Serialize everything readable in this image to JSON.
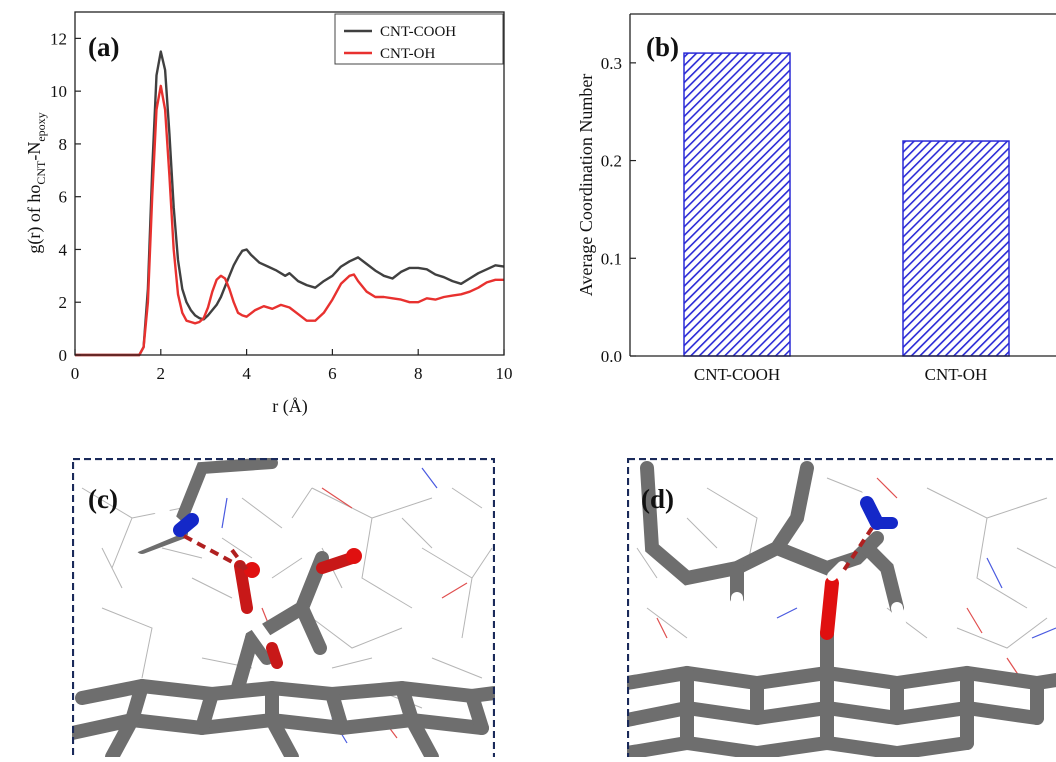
{
  "chart_data": [
    {
      "type": "line",
      "panel_label": "(a)",
      "xlabel": "r (Å)",
      "ylabel": {
        "prefix": "g(r) of ho",
        "sub1": "CNT",
        "mid": "-N",
        "sub2": "epoxy"
      },
      "xlim": [
        0,
        10
      ],
      "ylim": [
        0,
        13
      ],
      "xticks": [
        0,
        2,
        4,
        6,
        8,
        10
      ],
      "yticks": [
        0,
        2,
        4,
        6,
        8,
        10,
        12
      ],
      "legend_position": "top-right",
      "series": [
        {
          "name": "CNT-COOH",
          "color": "#404040",
          "points": [
            [
              0,
              0
            ],
            [
              1.0,
              0
            ],
            [
              1.5,
              0
            ],
            [
              1.6,
              0.3
            ],
            [
              1.7,
              2.5
            ],
            [
              1.8,
              7.0
            ],
            [
              1.9,
              10.6
            ],
            [
              2.0,
              11.5
            ],
            [
              2.1,
              10.8
            ],
            [
              2.2,
              8.4
            ],
            [
              2.3,
              5.6
            ],
            [
              2.4,
              3.6
            ],
            [
              2.5,
              2.5
            ],
            [
              2.6,
              2.0
            ],
            [
              2.7,
              1.7
            ],
            [
              2.8,
              1.5
            ],
            [
              2.9,
              1.4
            ],
            [
              3.0,
              1.35
            ],
            [
              3.1,
              1.5
            ],
            [
              3.2,
              1.7
            ],
            [
              3.3,
              1.9
            ],
            [
              3.4,
              2.2
            ],
            [
              3.5,
              2.6
            ],
            [
              3.6,
              3.0
            ],
            [
              3.7,
              3.4
            ],
            [
              3.8,
              3.7
            ],
            [
              3.9,
              3.95
            ],
            [
              4.0,
              4.0
            ],
            [
              4.1,
              3.8
            ],
            [
              4.3,
              3.5
            ],
            [
              4.5,
              3.35
            ],
            [
              4.7,
              3.2
            ],
            [
              4.9,
              3.0
            ],
            [
              5.0,
              3.1
            ],
            [
              5.2,
              2.8
            ],
            [
              5.4,
              2.65
            ],
            [
              5.6,
              2.55
            ],
            [
              5.8,
              2.8
            ],
            [
              6.0,
              3.0
            ],
            [
              6.2,
              3.35
            ],
            [
              6.4,
              3.55
            ],
            [
              6.6,
              3.7
            ],
            [
              6.8,
              3.45
            ],
            [
              7.0,
              3.2
            ],
            [
              7.2,
              3.0
            ],
            [
              7.4,
              2.9
            ],
            [
              7.6,
              3.15
            ],
            [
              7.8,
              3.3
            ],
            [
              8.0,
              3.3
            ],
            [
              8.2,
              3.25
            ],
            [
              8.4,
              3.05
            ],
            [
              8.6,
              2.95
            ],
            [
              8.8,
              2.8
            ],
            [
              9.0,
              2.7
            ],
            [
              9.2,
              2.9
            ],
            [
              9.4,
              3.1
            ],
            [
              9.6,
              3.25
            ],
            [
              9.8,
              3.4
            ],
            [
              10.0,
              3.35
            ]
          ]
        },
        {
          "name": "CNT-OH",
          "color": "#e8312f",
          "points": [
            [
              0,
              0
            ],
            [
              1.0,
              0
            ],
            [
              1.5,
              0
            ],
            [
              1.6,
              0.3
            ],
            [
              1.7,
              2.0
            ],
            [
              1.8,
              6.0
            ],
            [
              1.9,
              9.3
            ],
            [
              2.0,
              10.2
            ],
            [
              2.1,
              9.3
            ],
            [
              2.2,
              6.8
            ],
            [
              2.3,
              4.0
            ],
            [
              2.4,
              2.3
            ],
            [
              2.5,
              1.6
            ],
            [
              2.6,
              1.3
            ],
            [
              2.7,
              1.25
            ],
            [
              2.8,
              1.2
            ],
            [
              2.9,
              1.25
            ],
            [
              3.0,
              1.4
            ],
            [
              3.1,
              1.8
            ],
            [
              3.2,
              2.4
            ],
            [
              3.3,
              2.85
            ],
            [
              3.4,
              3.0
            ],
            [
              3.5,
              2.9
            ],
            [
              3.6,
              2.5
            ],
            [
              3.7,
              2.0
            ],
            [
              3.8,
              1.6
            ],
            [
              3.9,
              1.5
            ],
            [
              4.0,
              1.45
            ],
            [
              4.2,
              1.7
            ],
            [
              4.4,
              1.85
            ],
            [
              4.6,
              1.75
            ],
            [
              4.8,
              1.9
            ],
            [
              5.0,
              1.8
            ],
            [
              5.2,
              1.55
            ],
            [
              5.4,
              1.3
            ],
            [
              5.6,
              1.3
            ],
            [
              5.8,
              1.6
            ],
            [
              6.0,
              2.1
            ],
            [
              6.2,
              2.7
            ],
            [
              6.4,
              3.0
            ],
            [
              6.5,
              3.05
            ],
            [
              6.6,
              2.8
            ],
            [
              6.8,
              2.4
            ],
            [
              7.0,
              2.2
            ],
            [
              7.2,
              2.2
            ],
            [
              7.4,
              2.15
            ],
            [
              7.6,
              2.1
            ],
            [
              7.8,
              2.0
            ],
            [
              8.0,
              2.0
            ],
            [
              8.2,
              2.15
            ],
            [
              8.4,
              2.1
            ],
            [
              8.6,
              2.2
            ],
            [
              8.8,
              2.25
            ],
            [
              9.0,
              2.3
            ],
            [
              9.2,
              2.4
            ],
            [
              9.4,
              2.55
            ],
            [
              9.6,
              2.75
            ],
            [
              9.8,
              2.85
            ],
            [
              10.0,
              2.85
            ]
          ]
        }
      ]
    },
    {
      "type": "bar",
      "panel_label": "(b)",
      "ylabel": "Average Coordination Number",
      "categories": [
        "CNT-COOH",
        "CNT-OH"
      ],
      "values": [
        0.31,
        0.22
      ],
      "ylim": [
        0,
        0.35
      ],
      "yticks": [
        "0.0",
        "0.1",
        "0.2",
        "0.3"
      ],
      "bar_fill": "hatched",
      "bar_color": "#2a2ad6"
    }
  ],
  "snapshots": [
    {
      "panel_label": "(c)",
      "description_icon": "molecular-snapshot-cnt-cooh"
    },
    {
      "panel_label": "(d)",
      "description_icon": "molecular-snapshot-cnt-oh"
    }
  ]
}
